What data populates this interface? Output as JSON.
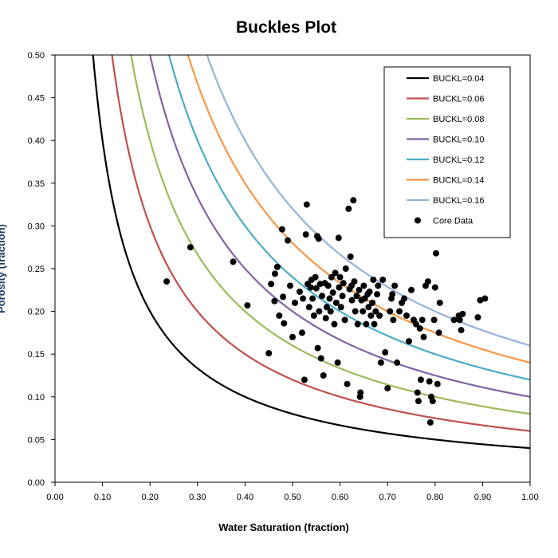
{
  "chart_data": {
    "type": "scatter",
    "title": "Buckles Plot",
    "xlabel": "Water Saturation (fraction)",
    "ylabel": "Porosity (fraction)",
    "xlim": [
      0,
      1
    ],
    "ylim": [
      0,
      0.5
    ],
    "x_ticks": [
      "0.00",
      "0.10",
      "0.20",
      "0.30",
      "0.40",
      "0.50",
      "0.60",
      "0.70",
      "0.80",
      "0.90",
      "1.00"
    ],
    "y_ticks": [
      "0.00",
      "0.05",
      "0.10",
      "0.15",
      "0.20",
      "0.25",
      "0.30",
      "0.35",
      "0.40",
      "0.45",
      "0.50"
    ],
    "grid": false,
    "legend_position": "top-right",
    "curves": [
      {
        "name": "BUCKL=0.04",
        "buckl": 0.04,
        "color": "#000000"
      },
      {
        "name": "BUCKL=0.06",
        "buckl": 0.06,
        "color": "#c0504d"
      },
      {
        "name": "BUCKL=0.08",
        "buckl": 0.08,
        "color": "#9bbb59"
      },
      {
        "name": "BUCKL=0.10",
        "buckl": 0.1,
        "color": "#8064a2"
      },
      {
        "name": "BUCKL=0.12",
        "buckl": 0.12,
        "color": "#4bacc6"
      },
      {
        "name": "BUCKL=0.14",
        "buckl": 0.14,
        "color": "#f79646"
      },
      {
        "name": "BUCKL=0.16",
        "buckl": 0.16,
        "color": "#95b3d7"
      }
    ],
    "scatter": {
      "name": "Core Data",
      "color": "#000000",
      "points": [
        [
          0.235,
          0.235
        ],
        [
          0.285,
          0.275
        ],
        [
          0.375,
          0.258
        ],
        [
          0.405,
          0.207
        ],
        [
          0.45,
          0.151
        ],
        [
          0.455,
          0.232
        ],
        [
          0.462,
          0.212
        ],
        [
          0.463,
          0.244
        ],
        [
          0.468,
          0.252
        ],
        [
          0.472,
          0.195
        ],
        [
          0.478,
          0.296
        ],
        [
          0.48,
          0.217
        ],
        [
          0.482,
          0.186
        ],
        [
          0.49,
          0.283
        ],
        [
          0.495,
          0.23
        ],
        [
          0.5,
          0.17
        ],
        [
          0.505,
          0.21
        ],
        [
          0.515,
          0.223
        ],
        [
          0.52,
          0.175
        ],
        [
          0.522,
          0.215
        ],
        [
          0.525,
          0.12
        ],
        [
          0.528,
          0.29
        ],
        [
          0.53,
          0.325
        ],
        [
          0.532,
          0.232
        ],
        [
          0.535,
          0.205
        ],
        [
          0.538,
          0.228
        ],
        [
          0.54,
          0.237
        ],
        [
          0.542,
          0.215
        ],
        [
          0.545,
          0.195
        ],
        [
          0.548,
          0.24
        ],
        [
          0.55,
          0.227
        ],
        [
          0.552,
          0.288
        ],
        [
          0.553,
          0.157
        ],
        [
          0.555,
          0.285
        ],
        [
          0.556,
          0.2
        ],
        [
          0.558,
          0.232
        ],
        [
          0.56,
          0.145
        ],
        [
          0.562,
          0.218
        ],
        [
          0.565,
          0.125
        ],
        [
          0.568,
          0.233
        ],
        [
          0.57,
          0.192
        ],
        [
          0.572,
          0.205
        ],
        [
          0.575,
          0.23
        ],
        [
          0.578,
          0.215
        ],
        [
          0.58,
          0.2
        ],
        [
          0.582,
          0.24
        ],
        [
          0.585,
          0.222
        ],
        [
          0.588,
          0.185
        ],
        [
          0.59,
          0.245
        ],
        [
          0.592,
          0.21
        ],
        [
          0.595,
          0.14
        ],
        [
          0.597,
          0.286
        ],
        [
          0.598,
          0.228
        ],
        [
          0.6,
          0.24
        ],
        [
          0.602,
          0.205
        ],
        [
          0.605,
          0.218
        ],
        [
          0.607,
          0.233
        ],
        [
          0.61,
          0.19
        ],
        [
          0.612,
          0.25
        ],
        [
          0.615,
          0.115
        ],
        [
          0.618,
          0.32
        ],
        [
          0.62,
          0.226
        ],
        [
          0.622,
          0.264
        ],
        [
          0.624,
          0.23
        ],
        [
          0.625,
          0.213
        ],
        [
          0.628,
          0.33
        ],
        [
          0.63,
          0.235
        ],
        [
          0.632,
          0.2
        ],
        [
          0.635,
          0.218
        ],
        [
          0.637,
          0.185
        ],
        [
          0.64,
          0.225
        ],
        [
          0.642,
          0.1
        ],
        [
          0.643,
          0.105
        ],
        [
          0.645,
          0.213
        ],
        [
          0.648,
          0.2
        ],
        [
          0.65,
          0.23
        ],
        [
          0.652,
          0.215
        ],
        [
          0.655,
          0.185
        ],
        [
          0.658,
          0.22
        ],
        [
          0.66,
          0.205
        ],
        [
          0.662,
          0.223
        ],
        [
          0.665,
          0.195
        ],
        [
          0.668,
          0.21
        ],
        [
          0.67,
          0.237
        ],
        [
          0.672,
          0.185
        ],
        [
          0.675,
          0.2
        ],
        [
          0.678,
          0.22
        ],
        [
          0.68,
          0.23
        ],
        [
          0.683,
          0.195
        ],
        [
          0.686,
          0.14
        ],
        [
          0.69,
          0.237
        ],
        [
          0.695,
          0.152
        ],
        [
          0.7,
          0.11
        ],
        [
          0.705,
          0.2
        ],
        [
          0.708,
          0.215
        ],
        [
          0.71,
          0.22
        ],
        [
          0.712,
          0.19
        ],
        [
          0.715,
          0.23
        ],
        [
          0.72,
          0.14
        ],
        [
          0.725,
          0.2
        ],
        [
          0.73,
          0.21
        ],
        [
          0.735,
          0.215
        ],
        [
          0.74,
          0.195
        ],
        [
          0.745,
          0.165
        ],
        [
          0.75,
          0.225
        ],
        [
          0.755,
          0.19
        ],
        [
          0.76,
          0.185
        ],
        [
          0.763,
          0.105
        ],
        [
          0.765,
          0.095
        ],
        [
          0.768,
          0.18
        ],
        [
          0.77,
          0.12
        ],
        [
          0.773,
          0.19
        ],
        [
          0.776,
          0.17
        ],
        [
          0.78,
          0.23
        ],
        [
          0.785,
          0.235
        ],
        [
          0.788,
          0.118
        ],
        [
          0.79,
          0.07
        ],
        [
          0.792,
          0.1
        ],
        [
          0.795,
          0.095
        ],
        [
          0.798,
          0.19
        ],
        [
          0.8,
          0.228
        ],
        [
          0.802,
          0.268
        ],
        [
          0.805,
          0.115
        ],
        [
          0.808,
          0.175
        ],
        [
          0.81,
          0.21
        ],
        [
          0.84,
          0.19
        ],
        [
          0.85,
          0.195
        ],
        [
          0.852,
          0.19
        ],
        [
          0.855,
          0.178
        ],
        [
          0.858,
          0.197
        ],
        [
          0.89,
          0.193
        ],
        [
          0.895,
          0.213
        ],
        [
          0.905,
          0.215
        ]
      ]
    }
  }
}
